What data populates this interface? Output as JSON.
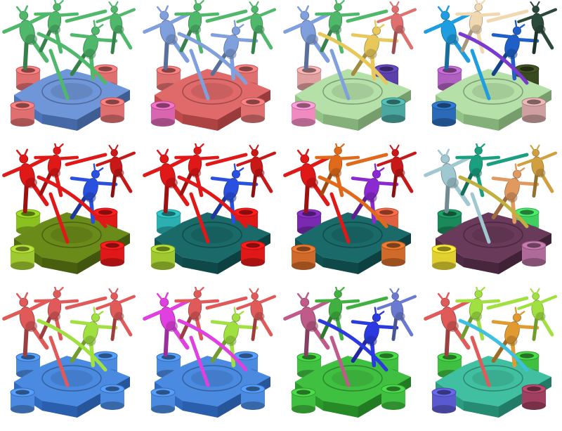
{
  "figure": {
    "rows": 3,
    "columns": 4,
    "background": "#ffffff",
    "panels": [
      {
        "figures": [
          "#4fb86a",
          "#4fb86a",
          "#4fb86a",
          "#4fb86a"
        ],
        "base_top": "#6f96d8",
        "base_side": "#4d74b8",
        "cylinders": [
          "#e07070",
          "#e07070",
          "#e07070",
          "#e07070"
        ],
        "accent": "#4fb86a"
      },
      {
        "figures": [
          "#7fa0dc",
          "#4fb86a",
          "#7fa0dc",
          "#4fb86a"
        ],
        "base_top": "#e06a6a",
        "base_side": "#c04a4a",
        "cylinders": [
          "#d964b0",
          "#e07070",
          "#e07070",
          "#e07070"
        ],
        "accent": "#7fa0dc"
      },
      {
        "figures": [
          "#7fa0dc",
          "#4fb86a",
          "#e8c85a",
          "#e07070"
        ],
        "base_top": "#b5e0a8",
        "base_side": "#93c486",
        "cylinders": [
          "#f08ac0",
          "#4aa8a0",
          "#5a40a8",
          "#e0a0a0"
        ],
        "accent": "#e8c85a"
      },
      {
        "figures": [
          "#1e9ee0",
          "#f0d8b0",
          "#1e60c8",
          "#2a4a3a"
        ],
        "base_top": "#b5e0a8",
        "base_side": "#93c486",
        "cylinders": [
          "#2a6ab8",
          "#d0a0a0",
          "#3a4a20",
          "#b060c0"
        ],
        "accent": "#7a3ad0"
      },
      {
        "figures": [
          "#e01818",
          "#e01818",
          "#2a50e0",
          "#c81818"
        ],
        "base_top": "#6a8a1a",
        "base_side": "#506a10",
        "cylinders": [
          "#a0c830",
          "#e01818",
          "#e01818",
          "#8ac020"
        ],
        "accent": "#e01818"
      },
      {
        "figures": [
          "#e01818",
          "#e01818",
          "#2a50e0",
          "#c81818"
        ],
        "base_top": "#1a6a6a",
        "base_side": "#105050",
        "cylinders": [
          "#a0c830",
          "#e01818",
          "#e01818",
          "#2ab0b0"
        ],
        "accent": "#e01818"
      },
      {
        "figures": [
          "#e01818",
          "#e06a1a",
          "#8a2ad0",
          "#c81818"
        ],
        "base_top": "#1a6a6a",
        "base_side": "#105050",
        "cylinders": [
          "#d06a2a",
          "#d06a2a",
          "#e06040",
          "#7a2ab0"
        ],
        "accent": "#e06a1a"
      },
      {
        "figures": [
          "#a0c8d0",
          "#1aa080",
          "#e09a60",
          "#d0a040"
        ],
        "base_top": "#6a3a5a",
        "base_side": "#502a44",
        "cylinders": [
          "#e0d030",
          "#b06a9a",
          "#40d060",
          "#1a8a5a"
        ],
        "accent": "#c0b040"
      },
      {
        "figures": [
          "#e05a5a",
          "#e05a5a",
          "#a0e040",
          "#e05a5a"
        ],
        "base_top": "#4a8ae0",
        "base_side": "#2f6ac0",
        "cylinders": [
          "#4a8ae0",
          "#4a8ae0",
          "#4a8ae0",
          "#4a8ae0"
        ],
        "accent": "#a0e040"
      },
      {
        "figures": [
          "#e040e0",
          "#e05a5a",
          "#a0e040",
          "#e05a5a"
        ],
        "base_top": "#4a8ae0",
        "base_side": "#2f6ac0",
        "cylinders": [
          "#4a8ae0",
          "#4a8ae0",
          "#4a8ae0",
          "#4a8ae0"
        ],
        "accent": "#e040e0"
      },
      {
        "figures": [
          "#c05a8a",
          "#40b040",
          "#2a3ae0",
          "#6a7ad0"
        ],
        "base_top": "#40c040",
        "base_side": "#2a9a2a",
        "cylinders": [
          "#40c040",
          "#40c040",
          "#40c040",
          "#40c040"
        ],
        "accent": "#2a3ae0"
      },
      {
        "figures": [
          "#e05a5a",
          "#a0e040",
          "#e09a30",
          "#a0e040"
        ],
        "base_top": "#40c0a0",
        "base_side": "#2a9a80",
        "cylinders": [
          "#5a5ad0",
          "#a04060",
          "#40c040",
          "#40c040"
        ],
        "accent": "#40c0e0"
      }
    ]
  }
}
